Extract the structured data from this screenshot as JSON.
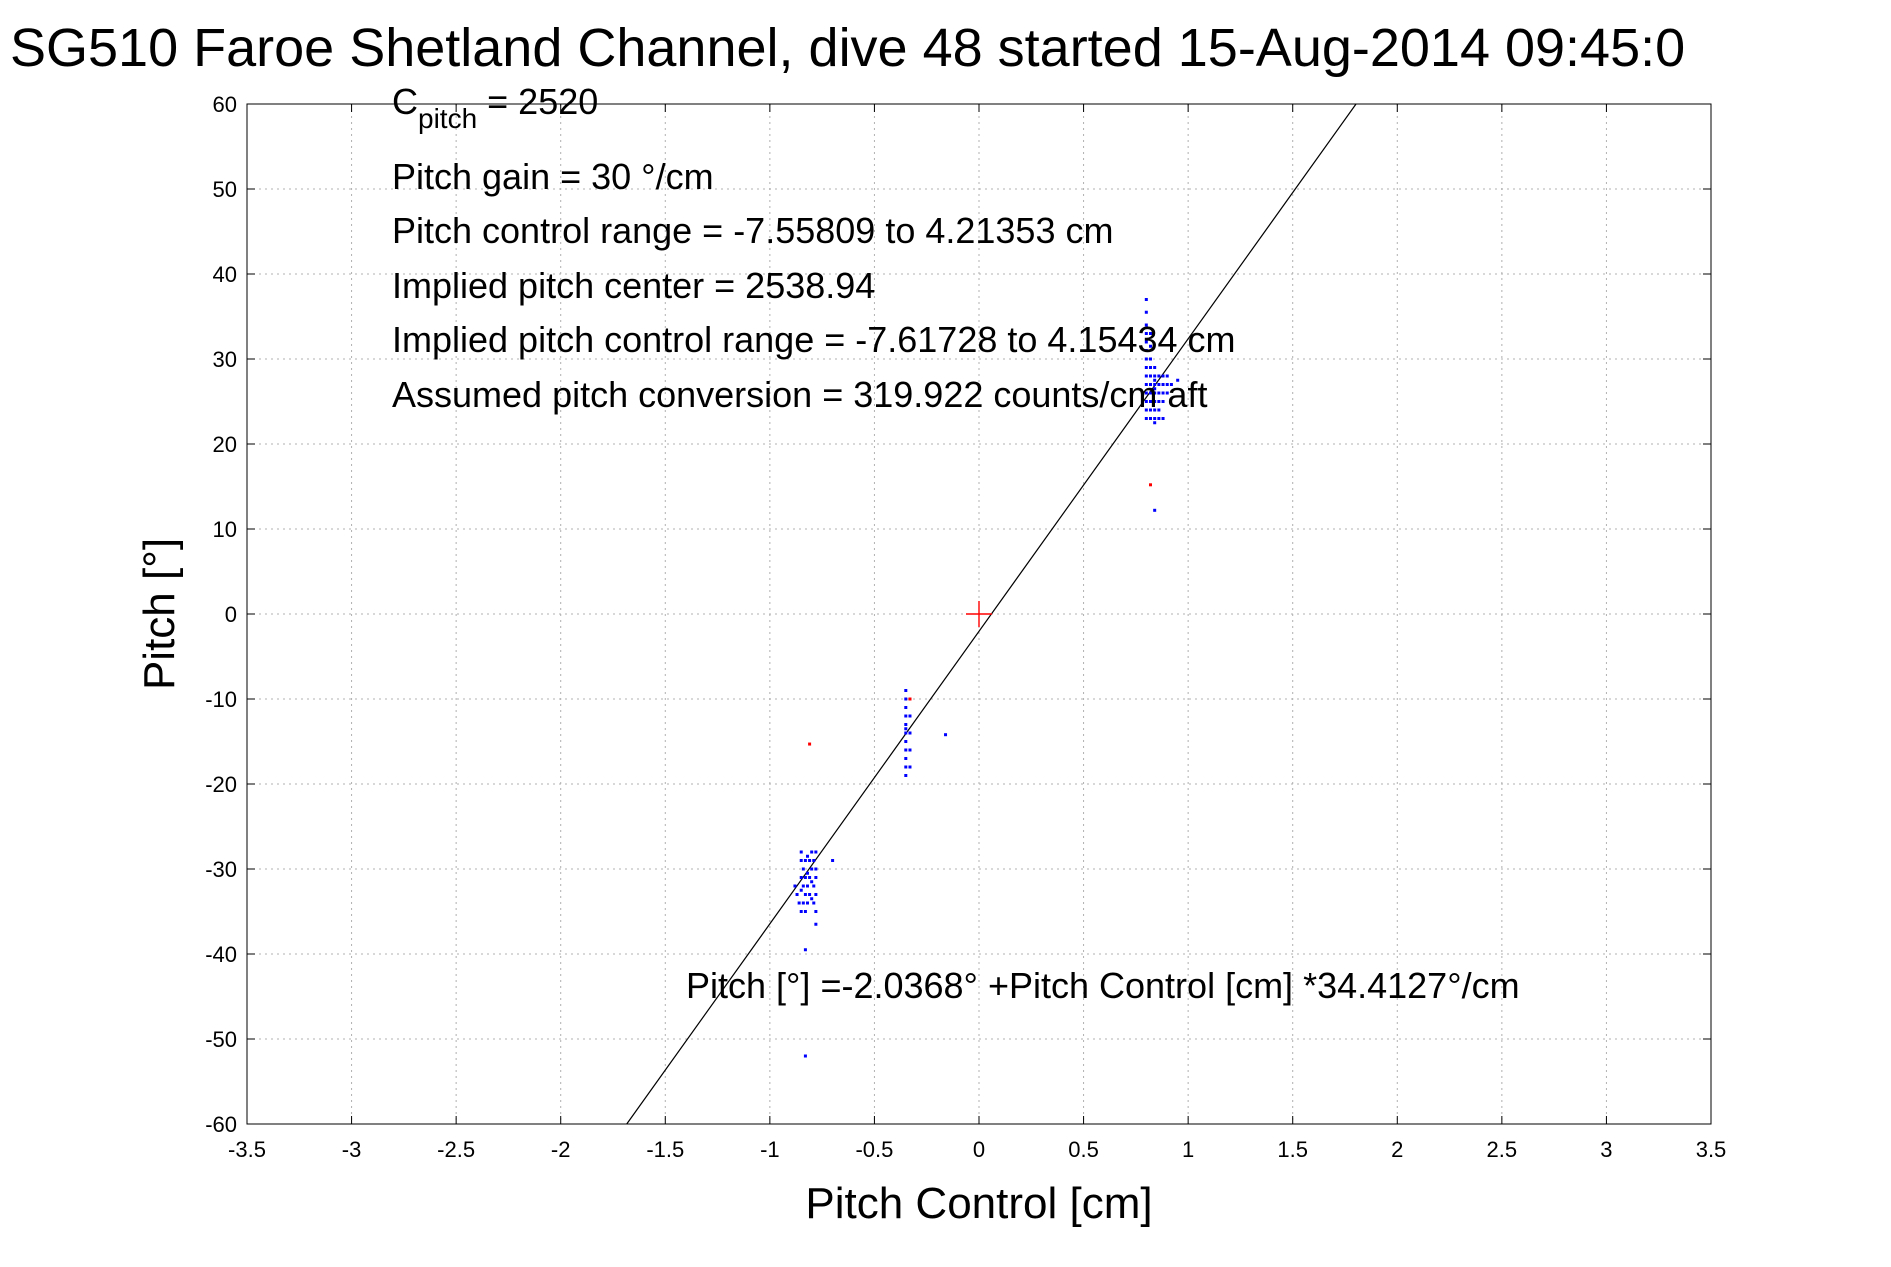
{
  "chart_data": {
    "type": "scatter",
    "title": "SG510 Faroe Shetland Channel, dive 48 started 15-Aug-2014 09:45:0",
    "xlabel": "Pitch Control [cm]",
    "ylabel": "Pitch [°]",
    "xlim": [
      -3.5,
      3.5
    ],
    "ylim": [
      -60,
      60
    ],
    "xticks": [
      -3.5,
      -3,
      -2.5,
      -2,
      -1.5,
      -1,
      -0.5,
      0,
      0.5,
      1,
      1.5,
      2,
      2.5,
      3,
      3.5
    ],
    "xtick_labels": [
      "-3.5",
      "-3",
      "-2.5",
      "-2",
      "-1.5",
      "-1",
      "-0.5",
      "0",
      "0.5",
      "1",
      "1.5",
      "2",
      "2.5",
      "3",
      "3.5"
    ],
    "yticks": [
      60,
      50,
      40,
      30,
      20,
      10,
      0,
      -10,
      -20,
      -30,
      -40,
      -50,
      -60
    ],
    "ytick_labels": [
      "60",
      "50",
      "40",
      "30",
      "20",
      "10",
      "0",
      "-10",
      "-20",
      "-30",
      "-40",
      "-50",
      "-60"
    ],
    "grid": true,
    "annotations": {
      "c_pitch_main": "C",
      "c_pitch_sub": "pitch",
      "c_pitch_value": " = 2520",
      "pitch_gain": "Pitch gain = 30 °/cm",
      "control_range": "Pitch control range = -7.55809 to 4.21353 cm",
      "implied_center": "Implied pitch center = 2538.94",
      "implied_range": "Implied pitch control range = -7.61728 to 4.15434 cm",
      "conversion": "Assumed pitch conversion = 319.922 counts/cm aft",
      "fit_equation": "Pitch [°] =-2.0368° +Pitch Control [cm] *34.4127°/cm"
    },
    "fit_line": {
      "intercept": -2.0368,
      "slope": 34.4127,
      "color": "#000000"
    },
    "origin_marker": {
      "x": 0,
      "y": 0,
      "color": "#ff0000"
    },
    "series": [
      {
        "color": "#0000ff",
        "points": [
          [
            0.8,
            37.0
          ],
          [
            0.8,
            35.5
          ],
          [
            0.8,
            34.0
          ],
          [
            0.8,
            33.0
          ],
          [
            0.8,
            32.0
          ],
          [
            0.8,
            31.0
          ],
          [
            0.8,
            30.0
          ],
          [
            0.8,
            29.0
          ],
          [
            0.8,
            28.0
          ],
          [
            0.8,
            27.0
          ],
          [
            0.8,
            26.0
          ],
          [
            0.8,
            25.0
          ],
          [
            0.8,
            24.0
          ],
          [
            0.8,
            23.0
          ],
          [
            0.82,
            33.0
          ],
          [
            0.82,
            31.5
          ],
          [
            0.82,
            30.0
          ],
          [
            0.82,
            29.0
          ],
          [
            0.82,
            28.0
          ],
          [
            0.82,
            27.0
          ],
          [
            0.82,
            26.0
          ],
          [
            0.82,
            25.0
          ],
          [
            0.82,
            24.0
          ],
          [
            0.82,
            23.0
          ],
          [
            0.84,
            29.0
          ],
          [
            0.84,
            28.0
          ],
          [
            0.84,
            27.5
          ],
          [
            0.84,
            27.0
          ],
          [
            0.84,
            26.5
          ],
          [
            0.84,
            26.0
          ],
          [
            0.84,
            25.0
          ],
          [
            0.84,
            24.0
          ],
          [
            0.84,
            23.0
          ],
          [
            0.84,
            22.5
          ],
          [
            0.86,
            28.0
          ],
          [
            0.86,
            27.0
          ],
          [
            0.86,
            26.0
          ],
          [
            0.86,
            25.0
          ],
          [
            0.86,
            24.0
          ],
          [
            0.86,
            23.0
          ],
          [
            0.88,
            28.0
          ],
          [
            0.88,
            27.0
          ],
          [
            0.88,
            26.0
          ],
          [
            0.88,
            25.0
          ],
          [
            0.88,
            23.0
          ],
          [
            0.9,
            28.0
          ],
          [
            0.9,
            27.0
          ],
          [
            0.9,
            26.0
          ],
          [
            0.92,
            27.0
          ],
          [
            0.95,
            27.5
          ],
          [
            0.84,
            12.2
          ],
          [
            -0.35,
            -9.0
          ],
          [
            -0.35,
            -10.0
          ],
          [
            -0.35,
            -11.0
          ],
          [
            -0.35,
            -12.0
          ],
          [
            -0.35,
            -13.0
          ],
          [
            -0.35,
            -13.5
          ],
          [
            -0.35,
            -14.0
          ],
          [
            -0.35,
            -15.0
          ],
          [
            -0.35,
            -16.0
          ],
          [
            -0.35,
            -17.0
          ],
          [
            -0.35,
            -18.0
          ],
          [
            -0.35,
            -19.0
          ],
          [
            -0.33,
            -10.0
          ],
          [
            -0.33,
            -12.0
          ],
          [
            -0.33,
            -14.0
          ],
          [
            -0.33,
            -16.0
          ],
          [
            -0.33,
            -18.0
          ],
          [
            -0.16,
            -14.2
          ],
          [
            -0.88,
            -32.0
          ],
          [
            -0.87,
            -33.0
          ],
          [
            -0.86,
            -34.0
          ],
          [
            -0.85,
            -32.5
          ],
          [
            -0.85,
            -31.0
          ],
          [
            -0.85,
            -29.0
          ],
          [
            -0.85,
            -28.0
          ],
          [
            -0.85,
            -35.0
          ],
          [
            -0.84,
            -30.0
          ],
          [
            -0.84,
            -32.0
          ],
          [
            -0.84,
            -34.0
          ],
          [
            -0.83,
            -29.0
          ],
          [
            -0.83,
            -31.0
          ],
          [
            -0.83,
            -33.0
          ],
          [
            -0.83,
            -35.0
          ],
          [
            -0.82,
            -28.5
          ],
          [
            -0.82,
            -30.5
          ],
          [
            -0.82,
            -32.0
          ],
          [
            -0.82,
            -34.0
          ],
          [
            -0.81,
            -29.0
          ],
          [
            -0.81,
            -31.0
          ],
          [
            -0.81,
            -33.0
          ],
          [
            -0.8,
            -28.0
          ],
          [
            -0.8,
            -30.0
          ],
          [
            -0.8,
            -31.5
          ],
          [
            -0.8,
            -33.5
          ],
          [
            -0.79,
            -29.0
          ],
          [
            -0.79,
            -32.0
          ],
          [
            -0.79,
            -34.0
          ],
          [
            -0.78,
            -28.0
          ],
          [
            -0.78,
            -30.0
          ],
          [
            -0.78,
            -31.0
          ],
          [
            -0.78,
            -33.0
          ],
          [
            -0.78,
            -35.0
          ],
          [
            -0.78,
            -36.5
          ],
          [
            -0.7,
            -29.0
          ],
          [
            -0.83,
            -39.5
          ],
          [
            -0.83,
            -52.0
          ]
        ]
      },
      {
        "color": "#ff0000",
        "points": [
          [
            0.82,
            15.2
          ],
          [
            -0.81,
            -15.3
          ],
          [
            -0.33,
            -10.0
          ]
        ]
      }
    ]
  }
}
